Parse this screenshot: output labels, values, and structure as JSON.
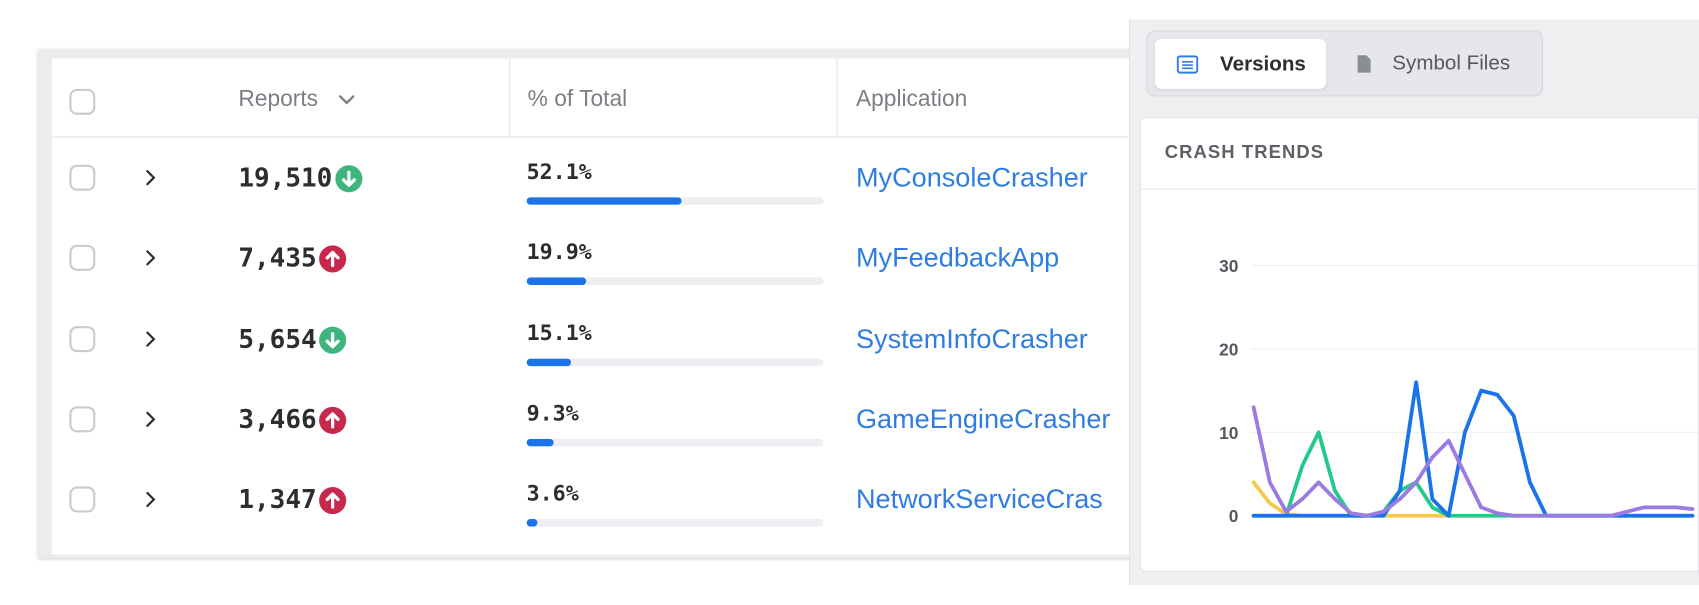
{
  "table": {
    "header": {
      "reports": "Reports",
      "percent": "% of Total",
      "application": "Application"
    },
    "rows": [
      {
        "reports": "19,510",
        "trend": "down",
        "percent": 52.1,
        "percent_label": "52.1%",
        "application": "MyConsoleCrasher"
      },
      {
        "reports": "7,435",
        "trend": "up",
        "percent": 19.9,
        "percent_label": "19.9%",
        "application": "MyFeedbackApp"
      },
      {
        "reports": "5,654",
        "trend": "down",
        "percent": 15.1,
        "percent_label": "15.1%",
        "application": "SystemInfoCrasher"
      },
      {
        "reports": "3,466",
        "trend": "up",
        "percent": 9.3,
        "percent_label": "9.3%",
        "application": "GameEngineCrasher"
      },
      {
        "reports": "1,347",
        "trend": "up",
        "percent": 3.6,
        "percent_label": "3.6%",
        "application": "NetworkServiceCras"
      }
    ]
  },
  "tabs": [
    "Versions",
    "Symbol Files"
  ],
  "chart_data": {
    "type": "line",
    "title": "CRASH TRENDS",
    "categories": [
      null,
      null,
      null,
      null,
      null,
      null,
      null,
      null,
      null,
      null,
      null,
      null,
      null,
      null,
      null,
      null,
      null,
      null,
      null,
      null,
      null,
      null,
      null,
      null,
      null,
      null,
      null,
      null
    ],
    "series": [
      {
        "name": null,
        "color": "#f5c84c",
        "values": [
          4,
          1.5,
          0.2,
          0,
          0,
          0,
          0,
          0,
          0,
          0,
          0,
          0,
          0,
          null,
          null,
          null,
          null,
          null,
          null,
          null,
          null,
          null,
          null,
          null,
          null,
          null,
          null,
          null
        ]
      },
      {
        "name": null,
        "color": "#22c98a",
        "values": [
          0,
          0,
          0,
          6,
          10,
          3,
          0,
          0,
          0.5,
          3,
          4,
          1,
          0,
          0,
          0,
          0,
          0,
          0,
          0,
          0,
          0,
          0,
          0,
          0,
          0,
          0,
          0,
          0
        ]
      },
      {
        "name": null,
        "color": "#1a73e8",
        "values": [
          0,
          0,
          0,
          0,
          0,
          0,
          0,
          0,
          0,
          3,
          16,
          2,
          0,
          10,
          15,
          14.5,
          12,
          4,
          0,
          0,
          0,
          0,
          0,
          0,
          0,
          0,
          0,
          0
        ]
      },
      {
        "name": null,
        "color": "#9b7be3",
        "values": [
          13,
          4,
          0.5,
          2,
          4,
          2,
          0.3,
          0,
          0.5,
          2,
          4,
          7,
          9,
          5,
          1,
          0.3,
          0,
          0,
          0,
          0,
          0,
          0,
          0,
          0.5,
          1,
          1,
          1,
          0.8
        ]
      }
    ],
    "ylim": [
      0,
      30
    ],
    "yticks": [
      0,
      10,
      20,
      30
    ],
    "grid": true
  }
}
